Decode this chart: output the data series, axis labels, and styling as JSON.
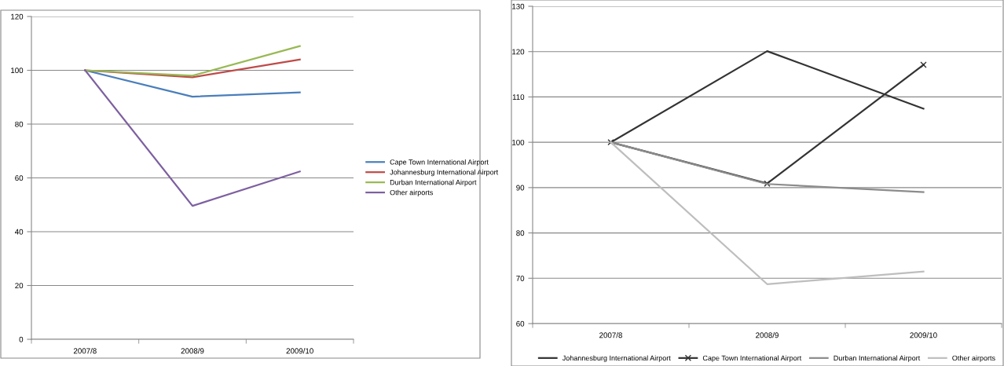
{
  "chart_data": [
    {
      "type": "line",
      "categories": [
        "2007/8",
        "2008/9",
        "2009/10"
      ],
      "ylim": [
        0,
        120
      ],
      "yticks": [
        0,
        20,
        40,
        60,
        80,
        100,
        120
      ],
      "grid": "y",
      "legend": "right",
      "series": [
        {
          "name": "Cape Town International Airport",
          "color": "#4a7ebb",
          "values": [
            100,
            90.2,
            91.8
          ]
        },
        {
          "name": "Johannesburg International Airport",
          "color": "#be4b48",
          "values": [
            100,
            97.4,
            104
          ]
        },
        {
          "name": "Durban International Airport",
          "color": "#98b954",
          "values": [
            100,
            98,
            109
          ]
        },
        {
          "name": "Other airports",
          "color": "#7d60a0",
          "values": [
            100,
            49.6,
            62.4
          ]
        }
      ]
    },
    {
      "type": "line",
      "categories": [
        "2007/8",
        "2008/9",
        "2009/10"
      ],
      "ylim": [
        60,
        130
      ],
      "yticks": [
        60,
        70,
        80,
        90,
        100,
        110,
        120,
        130
      ],
      "grid": "y",
      "legend": "bottom",
      "series": [
        {
          "name": "Johannesburg International Airport",
          "color": "#333333",
          "values": [
            100,
            120.1,
            107.4
          ]
        },
        {
          "name": "Cape Town International Airport",
          "color": "#333333",
          "marker": "cross",
          "values": [
            100,
            90.9,
            117.1
          ]
        },
        {
          "name": "Durban International Airport",
          "color": "#8c8c8c",
          "values": [
            100,
            90.8,
            89
          ]
        },
        {
          "name": "Other airports",
          "color": "#bebebe",
          "values": [
            100,
            68.7,
            71.5
          ]
        }
      ]
    }
  ]
}
